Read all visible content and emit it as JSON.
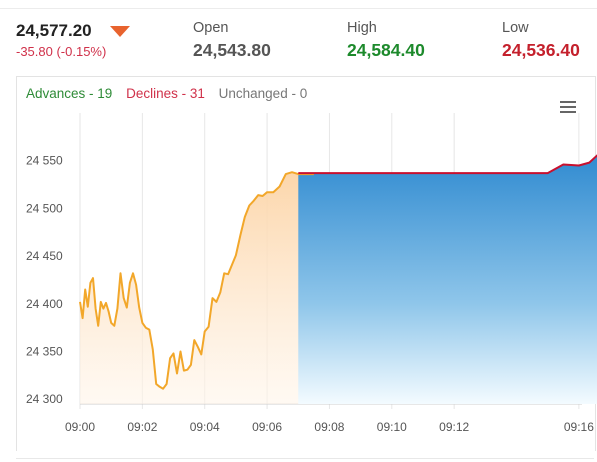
{
  "quote": {
    "last_price": "24,577.20",
    "change": "-35.80 (-0.15%)",
    "open_label": "Open",
    "open_value": "24,543.80",
    "high_label": "High",
    "high_value": "24,584.40",
    "low_label": "Low",
    "low_value": "24,536.40"
  },
  "breadth": {
    "advances": "Advances - 19",
    "declines": "Declines - 31",
    "unchanged": "Unchanged - 0"
  },
  "colors": {
    "down_arrow": "#e8632e",
    "advances": "#2e8b37",
    "declines": "#d0314a",
    "high": "#1d8a2c",
    "low": "#c4202c",
    "line_history": "#f2a72a",
    "line_reference": "#c8102e",
    "area_reference": "#2f8ad0"
  },
  "icons": {
    "menu": "hamburger-menu-icon",
    "trend": "triangle-down-icon"
  },
  "chart_data": {
    "type": "area",
    "title": "",
    "xlabel": "",
    "ylabel": "",
    "x_ticks": [
      "09:00",
      "09:02",
      "09:04",
      "09:06",
      "09:08",
      "09:10",
      "09:12",
      "09:16"
    ],
    "y_ticks": [
      "24 300",
      "24 350",
      "24 400",
      "24 450",
      "24 500",
      "24 550"
    ],
    "y_tick_values": [
      24300,
      24350,
      24400,
      24450,
      24500,
      24550
    ],
    "xlim": [
      "09:00",
      "09:16"
    ],
    "ylim": [
      24295,
      24600
    ],
    "grid": {
      "vertical": true,
      "horizontal": false
    },
    "series": [
      {
        "points": [
          [
            "09:00",
            24402
          ],
          [
            "09:00",
            24385
          ],
          [
            "09:00",
            24415
          ],
          [
            "09:00",
            24397
          ],
          [
            "09:00",
            24422
          ],
          [
            "09:00",
            24427
          ],
          [
            "09:00",
            24395
          ],
          [
            "09:00",
            24377
          ],
          [
            "09:00",
            24402
          ],
          [
            "09:00",
            24395
          ],
          [
            "09:00",
            24401
          ],
          [
            "09:00",
            24392
          ],
          [
            "09:01",
            24380
          ],
          [
            "09:01",
            24377
          ],
          [
            "09:01",
            24395
          ],
          [
            "09:01",
            24432
          ],
          [
            "09:01",
            24406
          ],
          [
            "09:01",
            24396
          ],
          [
            "09:01",
            24422
          ],
          [
            "09:01",
            24432
          ],
          [
            "09:01",
            24420
          ],
          [
            "09:01",
            24396
          ],
          [
            "09:02",
            24380
          ],
          [
            "09:02",
            24375
          ],
          [
            "09:02",
            24373
          ],
          [
            "09:02",
            24352
          ],
          [
            "09:02",
            24316
          ],
          [
            "09:02",
            24313
          ],
          [
            "09:02",
            24311
          ],
          [
            "09:02",
            24316
          ],
          [
            "09:02",
            24343
          ],
          [
            "09:03",
            24348
          ],
          [
            "09:03",
            24327
          ],
          [
            "09:03",
            24350
          ],
          [
            "09:03",
            24330
          ],
          [
            "09:03",
            24331
          ],
          [
            "09:03",
            24336
          ],
          [
            "09:03",
            24362
          ],
          [
            "09:03",
            24355
          ],
          [
            "09:03",
            24347
          ],
          [
            "09:04",
            24371
          ],
          [
            "09:04",
            24376
          ],
          [
            "09:04",
            24406
          ],
          [
            "09:04",
            24402
          ],
          [
            "09:04",
            24412
          ],
          [
            "09:04",
            24432
          ],
          [
            "09:04",
            24431
          ],
          [
            "09:04",
            24441
          ],
          [
            "09:05",
            24451
          ],
          [
            "09:05",
            24472
          ],
          [
            "09:05",
            24491
          ],
          [
            "09:05",
            24503
          ],
          [
            "09:05",
            24508
          ],
          [
            "09:05",
            24514
          ],
          [
            "09:05",
            24513
          ],
          [
            "09:06",
            24517
          ],
          [
            "09:06",
            24517
          ],
          [
            "09:06",
            24523
          ],
          [
            "09:06",
            24536
          ],
          [
            "09:06",
            24538
          ],
          [
            "09:07",
            24536
          ],
          [
            "09:07",
            24536
          ]
        ]
      },
      {
        "points": [
          [
            "09:07",
            24537
          ],
          [
            "09:15",
            24537
          ],
          [
            "09:15",
            24546
          ],
          [
            "09:16",
            24545
          ],
          [
            "09:16",
            24548
          ],
          [
            "09:16",
            24558
          ]
        ]
      }
    ],
    "reference_line": 24537
  }
}
